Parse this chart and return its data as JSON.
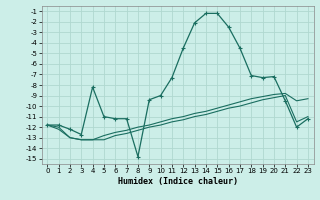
{
  "xlabel": "Humidex (Indice chaleur)",
  "bg_color": "#cceee8",
  "grid_color": "#b0d8d0",
  "line_color": "#1a6e60",
  "xlim": [
    -0.5,
    23.5
  ],
  "ylim": [
    -15.5,
    -0.5
  ],
  "xticks": [
    0,
    1,
    2,
    3,
    4,
    5,
    6,
    7,
    8,
    9,
    10,
    11,
    12,
    13,
    14,
    15,
    16,
    17,
    18,
    19,
    20,
    21,
    22,
    23
  ],
  "yticks": [
    -1,
    -2,
    -3,
    -4,
    -5,
    -6,
    -7,
    -8,
    -9,
    -10,
    -11,
    -12,
    -13,
    -14,
    -15
  ],
  "line1_x": [
    0,
    1,
    2,
    3,
    4,
    5,
    6,
    7,
    8,
    9,
    10,
    11,
    12,
    13,
    14,
    15,
    16,
    17,
    18,
    19,
    20,
    21,
    22,
    23
  ],
  "line1_y": [
    -11.8,
    -11.8,
    -12.2,
    -12.7,
    -8.2,
    -11.0,
    -11.2,
    -11.2,
    -14.8,
    -9.4,
    -9.0,
    -7.3,
    -4.5,
    -2.1,
    -1.2,
    -1.2,
    -2.5,
    -4.5,
    -7.1,
    -7.3,
    -7.2,
    -9.5,
    -12.0,
    -11.2
  ],
  "line2_x": [
    0,
    1,
    2,
    3,
    4,
    5,
    6,
    7,
    8,
    9,
    10,
    11,
    12,
    13,
    14,
    15,
    16,
    17,
    18,
    19,
    20,
    21,
    22,
    23
  ],
  "line2_y": [
    -11.8,
    -12.0,
    -13.0,
    -13.2,
    -13.2,
    -12.8,
    -12.5,
    -12.3,
    -12.0,
    -11.8,
    -11.5,
    -11.2,
    -11.0,
    -10.7,
    -10.5,
    -10.2,
    -9.9,
    -9.6,
    -9.3,
    -9.1,
    -8.9,
    -8.8,
    -9.5,
    -9.3
  ],
  "line3_x": [
    0,
    1,
    2,
    3,
    4,
    5,
    6,
    7,
    8,
    9,
    10,
    11,
    12,
    13,
    14,
    15,
    16,
    17,
    18,
    19,
    20,
    21,
    22,
    23
  ],
  "line3_y": [
    -11.8,
    -12.2,
    -13.0,
    -13.2,
    -13.2,
    -13.2,
    -12.8,
    -12.6,
    -12.3,
    -12.0,
    -11.8,
    -11.5,
    -11.3,
    -11.0,
    -10.8,
    -10.5,
    -10.2,
    -10.0,
    -9.7,
    -9.4,
    -9.2,
    -9.0,
    -11.5,
    -11.0
  ]
}
